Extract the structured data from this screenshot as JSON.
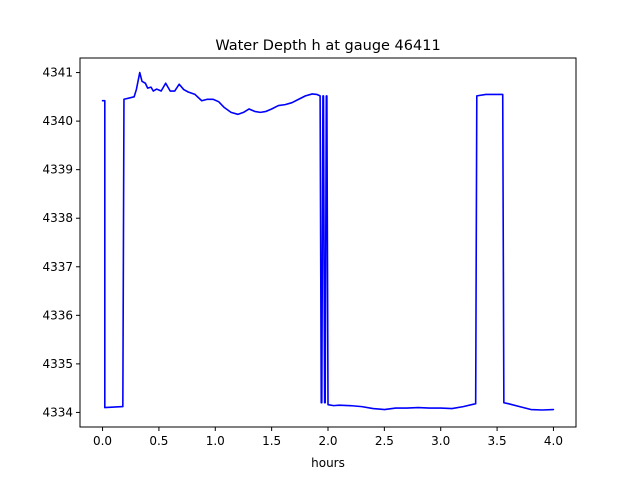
{
  "chart_data": {
    "type": "line",
    "title": "Water Depth h at gauge 46411",
    "xlabel": "hours",
    "ylabel": "",
    "xlim": [
      -0.2,
      4.2
    ],
    "ylim": [
      4333.7,
      4341.3
    ],
    "xticks": [
      0.0,
      0.5,
      1.0,
      1.5,
      2.0,
      2.5,
      3.0,
      3.5,
      4.0
    ],
    "xtick_labels": [
      "0.0",
      "0.5",
      "1.0",
      "1.5",
      "2.0",
      "2.5",
      "3.0",
      "3.5",
      "4.0"
    ],
    "yticks": [
      4334,
      4335,
      4336,
      4337,
      4338,
      4339,
      4340,
      4341
    ],
    "ytick_labels": [
      "4334",
      "4335",
      "4336",
      "4337",
      "4338",
      "4339",
      "4340",
      "4341"
    ],
    "grid": false,
    "series": [
      {
        "color": "#0000ff",
        "x": [
          0.0,
          0.02,
          0.02,
          0.18,
          0.19,
          0.28,
          0.3,
          0.33,
          0.35,
          0.38,
          0.4,
          0.43,
          0.45,
          0.48,
          0.52,
          0.56,
          0.6,
          0.64,
          0.68,
          0.72,
          0.76,
          0.82,
          0.88,
          0.93,
          0.98,
          1.03,
          1.08,
          1.14,
          1.2,
          1.25,
          1.3,
          1.35,
          1.4,
          1.45,
          1.5,
          1.56,
          1.62,
          1.68,
          1.74,
          1.8,
          1.86,
          1.9,
          1.93,
          1.94,
          1.945,
          1.955,
          1.96,
          1.97,
          1.975,
          1.985,
          1.99,
          2.0,
          2.05,
          2.1,
          2.2,
          2.3,
          2.4,
          2.5,
          2.6,
          2.7,
          2.8,
          2.9,
          3.0,
          3.1,
          3.2,
          3.31,
          3.32,
          3.4,
          3.5,
          3.55,
          3.56,
          3.6,
          3.7,
          3.8,
          3.9,
          4.0
        ],
        "y": [
          4340.42,
          4340.42,
          4334.1,
          4334.12,
          4340.45,
          4340.5,
          4340.65,
          4341.0,
          4340.82,
          4340.78,
          4340.68,
          4340.7,
          4340.62,
          4340.66,
          4340.62,
          4340.78,
          4340.62,
          4340.62,
          4340.76,
          4340.65,
          4340.6,
          4340.55,
          4340.42,
          4340.45,
          4340.45,
          4340.4,
          4340.28,
          4340.18,
          4340.14,
          4340.18,
          4340.25,
          4340.2,
          4340.18,
          4340.2,
          4340.25,
          4340.32,
          4340.34,
          4340.38,
          4340.45,
          4340.52,
          4340.56,
          4340.55,
          4340.52,
          4334.2,
          4334.2,
          4340.52,
          4340.52,
          4334.2,
          4334.2,
          4340.52,
          4340.52,
          4334.16,
          4334.14,
          4334.15,
          4334.14,
          4334.12,
          4334.08,
          4334.06,
          4334.09,
          4334.09,
          4334.1,
          4334.09,
          4334.09,
          4334.08,
          4334.12,
          4334.18,
          4340.52,
          4340.55,
          4340.55,
          4340.55,
          4334.2,
          4334.18,
          4334.12,
          4334.06,
          4334.05,
          4334.06
        ]
      }
    ]
  }
}
